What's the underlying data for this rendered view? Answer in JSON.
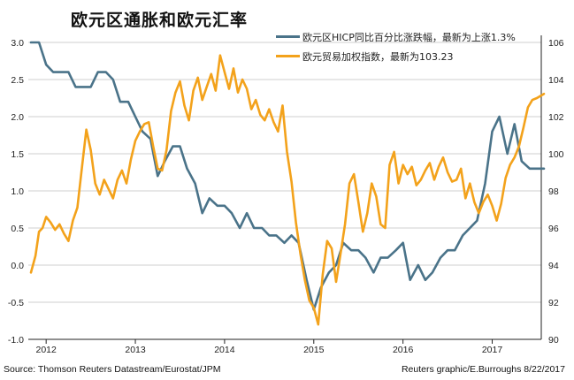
{
  "title": "欧元区通胀和欧元汇率",
  "source": "Source: Thomson Reuters Datastream/Eurostat/JPM",
  "credit": "Reuters graphic/E.Burroughs 8/22/2017",
  "colors": {
    "inflation": "#4a7389",
    "euro_index": "#f3a21b",
    "grid": "#cfcfcf",
    "frame": "#222222"
  },
  "chart_data": {
    "type": "line",
    "title": "欧元区通胀和欧元汇率",
    "x_ticks": [
      "2012",
      "2013",
      "2014",
      "2015",
      "2016",
      "2017"
    ],
    "x_tick_positions": [
      2012.0,
      2013.0,
      2014.0,
      2015.0,
      2016.0,
      2017.0
    ],
    "xlim": [
      2011.8,
      2017.55
    ],
    "y_left": {
      "ticks": [
        "3.0",
        "2.5",
        "2.0",
        "1.5",
        "1.0",
        "0.5",
        "0.0",
        "-0.5",
        "-1.0"
      ],
      "lim": [
        -1.0,
        3.0
      ]
    },
    "y_right": {
      "ticks": [
        "106",
        "104",
        "102",
        "100",
        "98",
        "96",
        "94",
        "92",
        "90"
      ],
      "lim": [
        90,
        106
      ]
    },
    "grid": true,
    "legend_position": "top-right",
    "series": [
      {
        "name": "欧元区HICP同比百分比涨跌幅，最新为上涨1.3%",
        "axis": "left",
        "x": [
          2011.83,
          2011.92,
          2012.0,
          2012.08,
          2012.17,
          2012.25,
          2012.33,
          2012.42,
          2012.5,
          2012.58,
          2012.67,
          2012.75,
          2012.83,
          2012.92,
          2013.0,
          2013.08,
          2013.17,
          2013.25,
          2013.33,
          2013.42,
          2013.5,
          2013.58,
          2013.67,
          2013.75,
          2013.83,
          2013.92,
          2014.0,
          2014.08,
          2014.17,
          2014.25,
          2014.33,
          2014.42,
          2014.5,
          2014.58,
          2014.67,
          2014.75,
          2014.83,
          2014.92,
          2015.0,
          2015.08,
          2015.17,
          2015.25,
          2015.33,
          2015.42,
          2015.5,
          2015.58,
          2015.67,
          2015.75,
          2015.83,
          2015.92,
          2016.0,
          2016.08,
          2016.17,
          2016.25,
          2016.33,
          2016.42,
          2016.5,
          2016.58,
          2016.67,
          2016.75,
          2016.83,
          2016.92,
          2017.0,
          2017.08,
          2017.17,
          2017.25,
          2017.33,
          2017.42,
          2017.5,
          2017.58
        ],
        "values": [
          3.0,
          3.0,
          2.7,
          2.6,
          2.6,
          2.6,
          2.4,
          2.4,
          2.4,
          2.6,
          2.6,
          2.5,
          2.2,
          2.2,
          2.0,
          1.8,
          1.7,
          1.2,
          1.4,
          1.6,
          1.6,
          1.3,
          1.1,
          0.7,
          0.9,
          0.8,
          0.8,
          0.7,
          0.5,
          0.7,
          0.5,
          0.5,
          0.4,
          0.4,
          0.3,
          0.4,
          0.3,
          -0.2,
          -0.6,
          -0.3,
          -0.1,
          0.0,
          0.3,
          0.2,
          0.2,
          0.1,
          -0.1,
          0.1,
          0.1,
          0.2,
          0.3,
          -0.2,
          0.0,
          -0.2,
          -0.1,
          0.1,
          0.2,
          0.2,
          0.4,
          0.5,
          0.6,
          1.1,
          1.8,
          2.0,
          1.5,
          1.9,
          1.4,
          1.3,
          1.3,
          1.3
        ]
      },
      {
        "name": "欧元贸易加权指数，最新为103.23",
        "axis": "right",
        "x": [
          2011.83,
          2011.88,
          2011.92,
          2011.96,
          2012.0,
          2012.05,
          2012.1,
          2012.15,
          2012.2,
          2012.25,
          2012.3,
          2012.35,
          2012.4,
          2012.45,
          2012.5,
          2012.55,
          2012.6,
          2012.65,
          2012.7,
          2012.75,
          2012.8,
          2012.85,
          2012.9,
          2012.95,
          2013.0,
          2013.05,
          2013.1,
          2013.15,
          2013.2,
          2013.25,
          2013.3,
          2013.35,
          2013.4,
          2013.45,
          2013.5,
          2013.55,
          2013.6,
          2013.65,
          2013.7,
          2013.75,
          2013.8,
          2013.85,
          2013.9,
          2013.95,
          2014.0,
          2014.05,
          2014.1,
          2014.15,
          2014.2,
          2014.25,
          2014.3,
          2014.35,
          2014.4,
          2014.45,
          2014.5,
          2014.55,
          2014.6,
          2014.65,
          2014.7,
          2014.75,
          2014.8,
          2014.85,
          2014.9,
          2014.95,
          2015.0,
          2015.05,
          2015.1,
          2015.15,
          2015.2,
          2015.25,
          2015.3,
          2015.35,
          2015.4,
          2015.45,
          2015.5,
          2015.55,
          2015.6,
          2015.65,
          2015.7,
          2015.75,
          2015.8,
          2015.85,
          2015.9,
          2015.95,
          2016.0,
          2016.05,
          2016.1,
          2016.15,
          2016.2,
          2016.25,
          2016.3,
          2016.35,
          2016.4,
          2016.45,
          2016.5,
          2016.55,
          2016.6,
          2016.65,
          2016.7,
          2016.75,
          2016.8,
          2016.85,
          2016.9,
          2016.95,
          2017.0,
          2017.05,
          2017.1,
          2017.15,
          2017.2,
          2017.25,
          2017.3,
          2017.35,
          2017.4,
          2017.45,
          2017.5,
          2017.58
        ],
        "values": [
          93.6,
          94.5,
          95.8,
          96.0,
          96.6,
          96.3,
          95.9,
          96.2,
          95.7,
          95.3,
          96.4,
          97.1,
          99.2,
          101.3,
          100.2,
          98.4,
          97.8,
          98.6,
          98.1,
          97.6,
          98.6,
          99.1,
          98.4,
          99.7,
          100.7,
          101.2,
          101.6,
          101.7,
          100.4,
          99.2,
          99.1,
          100.2,
          102.3,
          103.3,
          103.9,
          102.6,
          101.8,
          103.4,
          104.1,
          102.9,
          103.6,
          104.3,
          103.4,
          105.3,
          104.4,
          103.5,
          104.6,
          103.3,
          104.0,
          103.5,
          102.4,
          102.9,
          102.1,
          101.8,
          102.4,
          101.7,
          101.2,
          102.6,
          100.1,
          98.5,
          96.3,
          94.6,
          93.2,
          92.1,
          91.7,
          90.8,
          93.5,
          95.3,
          94.9,
          93.1,
          94.6,
          96.2,
          98.4,
          98.9,
          97.4,
          95.8,
          96.8,
          98.4,
          97.7,
          96.2,
          96.0,
          99.4,
          100.1,
          98.4,
          99.4,
          98.9,
          99.3,
          98.3,
          98.6,
          99.1,
          99.5,
          98.6,
          99.3,
          99.8,
          99.0,
          98.5,
          98.6,
          99.2,
          97.6,
          98.4,
          97.4,
          96.8,
          97.4,
          97.8,
          97.2,
          96.4,
          97.3,
          98.7,
          99.4,
          99.8,
          100.4,
          101.4,
          102.5,
          102.9,
          103.0,
          103.23
        ]
      }
    ]
  }
}
